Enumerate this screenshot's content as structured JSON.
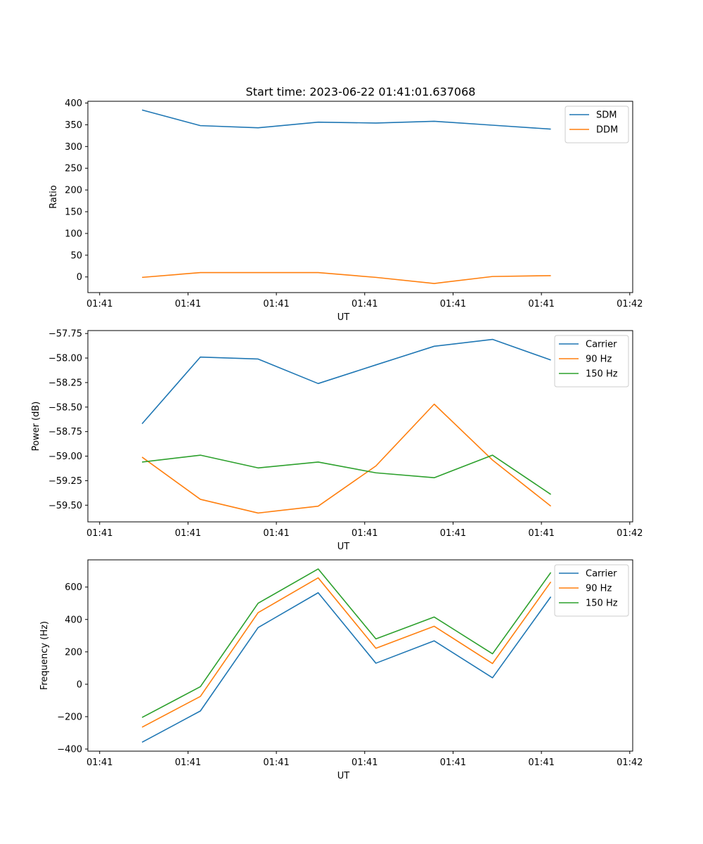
{
  "figure": {
    "title": "Start time: 2023-06-22 01:41:01.637068"
  },
  "chart_data": [
    {
      "type": "line",
      "name": "ratio",
      "xlabel": "UT",
      "ylabel": "Ratio",
      "xlim": [
        -0.5,
        8.75
      ],
      "ylim": [
        -36,
        404
      ],
      "yticks": [
        0,
        50,
        100,
        150,
        200,
        250,
        300,
        350,
        400
      ],
      "ytick_labels": [
        "0",
        "50",
        "100",
        "150",
        "200",
        "250",
        "300",
        "350",
        "400"
      ],
      "xticks": [
        -0.3,
        1.2,
        2.7,
        4.2,
        5.7,
        7.2,
        8.7
      ],
      "xtick_labels": [
        "01:41",
        "01:41",
        "01:41",
        "01:41",
        "01:41",
        "01:41",
        "01:42"
      ],
      "x": [
        0.42,
        1.41,
        2.39,
        3.41,
        4.39,
        5.38,
        6.37,
        7.36
      ],
      "series": [
        {
          "name": "SDM",
          "color": "#1f77b4",
          "values": [
            384,
            348,
            343,
            356,
            354,
            358,
            349,
            340
          ]
        },
        {
          "name": "DDM",
          "color": "#ff7f0e",
          "values": [
            -1,
            10,
            10,
            10,
            -1,
            -15,
            1,
            3
          ]
        }
      ],
      "legend": "top-right"
    },
    {
      "type": "line",
      "name": "power",
      "xlabel": "UT",
      "ylabel": "Power (dB)",
      "xlim": [
        -0.5,
        8.75
      ],
      "ylim": [
        -59.67,
        -57.72
      ],
      "yticks": [
        -59.5,
        -59.25,
        -59.0,
        -58.75,
        -58.5,
        -58.25,
        -58.0,
        -57.75
      ],
      "ytick_labels": [
        "−59.50",
        "−59.25",
        "−59.00",
        "−58.75",
        "−58.50",
        "−58.25",
        "−58.00",
        "−57.75"
      ],
      "xticks": [
        -0.3,
        1.2,
        2.7,
        4.2,
        5.7,
        7.2,
        8.7
      ],
      "xtick_labels": [
        "01:41",
        "01:41",
        "01:41",
        "01:41",
        "01:41",
        "01:41",
        "01:42"
      ],
      "x": [
        0.42,
        1.41,
        2.39,
        3.41,
        4.39,
        5.38,
        6.37,
        7.36
      ],
      "series": [
        {
          "name": "Carrier",
          "color": "#1f77b4",
          "values": [
            -58.67,
            -57.99,
            -58.01,
            -58.26,
            -58.07,
            -57.88,
            -57.81,
            -58.02
          ]
        },
        {
          "name": "90 Hz",
          "color": "#ff7f0e",
          "values": [
            -59.01,
            -59.44,
            -59.58,
            -59.51,
            -59.1,
            -58.47,
            -59.04,
            -59.51
          ]
        },
        {
          "name": "150 Hz",
          "color": "#2ca02c",
          "values": [
            -59.06,
            -58.99,
            -59.12,
            -59.06,
            -59.17,
            -59.22,
            -58.99,
            -59.39
          ]
        }
      ],
      "legend": "top-right"
    },
    {
      "type": "line",
      "name": "frequency",
      "xlabel": "UT",
      "ylabel": "Frequency (Hz)",
      "xlim": [
        -0.5,
        8.75
      ],
      "ylim": [
        -413,
        768
      ],
      "yticks": [
        -400,
        -200,
        0,
        200,
        400,
        600
      ],
      "ytick_labels": [
        "−400",
        "−200",
        "0",
        "200",
        "400",
        "600"
      ],
      "xticks": [
        -0.3,
        1.2,
        2.7,
        4.2,
        5.7,
        7.2,
        8.7
      ],
      "xtick_labels": [
        "01:41",
        "01:41",
        "01:41",
        "01:41",
        "01:41",
        "01:41",
        "01:42"
      ],
      "x": [
        0.42,
        1.41,
        2.39,
        3.41,
        4.39,
        5.38,
        6.37,
        7.36
      ],
      "series": [
        {
          "name": "Carrier",
          "color": "#1f77b4",
          "values": [
            -358,
            -165,
            350,
            565,
            130,
            268,
            40,
            540
          ]
        },
        {
          "name": "90 Hz",
          "color": "#ff7f0e",
          "values": [
            -265,
            -75,
            442,
            657,
            222,
            358,
            128,
            632
          ]
        },
        {
          "name": "150 Hz",
          "color": "#2ca02c",
          "values": [
            -205,
            -15,
            500,
            712,
            280,
            415,
            188,
            690
          ]
        }
      ],
      "legend": "top-right"
    }
  ]
}
